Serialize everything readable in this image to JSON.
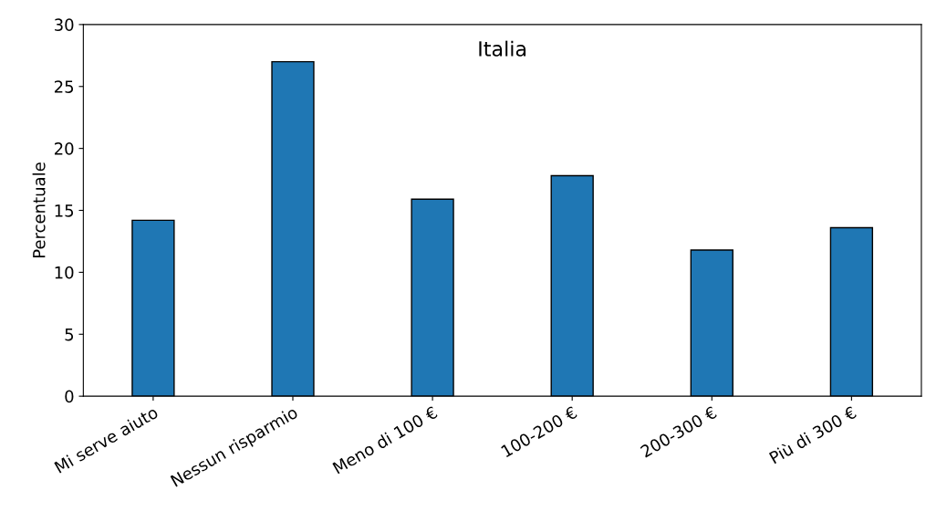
{
  "chart_data": {
    "type": "bar",
    "title": "Italia",
    "ylabel": "Percentuale",
    "categories": [
      "Mi serve aiuto",
      "Nessun risparmio",
      "Meno di 100 €",
      "100-200 €",
      "200-300 €",
      "Più di 300 €"
    ],
    "values": [
      14.2,
      27.0,
      15.9,
      17.8,
      11.8,
      13.6
    ],
    "color": "#1f77b4",
    "ylim": [
      0,
      30
    ],
    "yticks": [
      0,
      5,
      10,
      15,
      20,
      25,
      30
    ],
    "grid": false,
    "legend": false
  }
}
